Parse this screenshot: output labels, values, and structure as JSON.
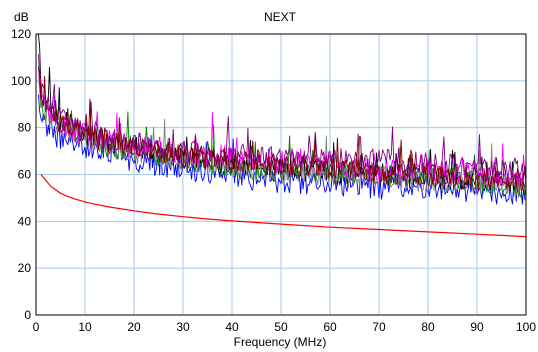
{
  "chart_data": {
    "type": "line",
    "title": "NEXT",
    "xlabel": "Frequency (MHz)",
    "ylabel": "dB",
    "xlim": [
      0,
      100
    ],
    "ylim": [
      0,
      120
    ],
    "xticks": [
      0,
      10,
      20,
      30,
      40,
      50,
      60,
      70,
      80,
      90,
      100
    ],
    "yticks": [
      0,
      20,
      40,
      60,
      80,
      100,
      120
    ],
    "grid": true,
    "legend": "none",
    "series": [
      {
        "color": "#ff0000",
        "x": [
          1,
          2,
          3,
          4,
          5,
          6,
          8,
          10,
          12,
          15,
          20,
          25,
          30,
          35,
          40,
          50,
          60,
          70,
          80,
          90,
          100
        ],
        "y": [
          60,
          57.5,
          55,
          53.5,
          52,
          51,
          49.5,
          48.3,
          47.3,
          46.1,
          44.5,
          43.1,
          42.0,
          41.0,
          40.2,
          38.8,
          37.5,
          36.5,
          35.5,
          34.5,
          33.5
        ]
      },
      {
        "color": "#0000ff",
        "x": [
          0.5,
          1,
          2,
          4,
          6,
          8,
          10,
          15,
          20,
          25,
          30,
          35,
          40,
          45,
          50,
          55,
          60,
          65,
          70,
          75,
          80,
          85,
          90,
          95,
          100
        ],
        "y": [
          92,
          85,
          80,
          76,
          74,
          73,
          72,
          69,
          66,
          63,
          62,
          60,
          59,
          58,
          57,
          56,
          56,
          55,
          54,
          55,
          54,
          53,
          53,
          52,
          52
        ]
      },
      {
        "color": "#008000",
        "x": [
          0.5,
          1,
          2,
          4,
          6,
          8,
          10,
          15,
          20,
          25,
          30,
          35,
          40,
          45,
          50,
          55,
          60,
          65,
          70,
          75,
          80,
          85,
          90,
          95,
          100
        ],
        "y": [
          102,
          90,
          86,
          82,
          80,
          78,
          76,
          72,
          70,
          68,
          67,
          65,
          64,
          63,
          62,
          62,
          61,
          60,
          60,
          59,
          58,
          58,
          57,
          56,
          55
        ]
      },
      {
        "color": "#000000",
        "x": [
          0.5,
          1,
          2,
          4,
          6,
          8,
          10,
          15,
          20,
          25,
          30,
          35,
          40,
          45,
          50,
          55,
          60,
          65,
          70,
          75,
          80,
          85,
          90,
          95,
          100
        ],
        "y": [
          125,
          98,
          90,
          85,
          82,
          80,
          78,
          74,
          72,
          70,
          68,
          66,
          65,
          64,
          63,
          62,
          61,
          60,
          60,
          59,
          59,
          58,
          58,
          57,
          56
        ]
      },
      {
        "color": "#808080",
        "x": [
          0.5,
          1,
          2,
          4,
          6,
          8,
          10,
          15,
          20,
          25,
          30,
          35,
          40,
          45,
          50,
          55,
          60,
          65,
          70,
          75,
          80,
          85,
          90,
          95,
          100
        ],
        "y": [
          100,
          92,
          86,
          81,
          79,
          77,
          75,
          72,
          70,
          68,
          66,
          65,
          63,
          62,
          61,
          61,
          60,
          59,
          59,
          58,
          57,
          57,
          56,
          56,
          55
        ]
      },
      {
        "color": "#ff00ff",
        "x": [
          0.5,
          1,
          2,
          4,
          6,
          8,
          10,
          15,
          20,
          25,
          30,
          35,
          40,
          45,
          50,
          55,
          60,
          65,
          70,
          75,
          80,
          85,
          90,
          95,
          100
        ],
        "y": [
          105,
          95,
          88,
          83,
          80,
          79,
          77,
          74,
          72,
          71,
          69,
          68,
          67,
          66,
          65,
          64,
          64,
          63,
          62,
          62,
          61,
          60,
          60,
          59,
          58
        ]
      },
      {
        "color": "#800080",
        "x": [
          0.5,
          1,
          2,
          4,
          6,
          8,
          10,
          15,
          20,
          25,
          30,
          35,
          40,
          45,
          50,
          55,
          60,
          65,
          70,
          75,
          80,
          85,
          90,
          95,
          100
        ],
        "y": [
          108,
          96,
          90,
          85,
          82,
          80,
          78,
          75,
          73,
          71,
          70,
          69,
          68,
          68,
          67,
          67,
          67,
          66,
          66,
          65,
          65,
          64,
          64,
          63,
          62
        ]
      },
      {
        "color": "#800000",
        "x": [
          0.5,
          1,
          2,
          4,
          6,
          8,
          10,
          15,
          20,
          25,
          30,
          35,
          40,
          45,
          50,
          55,
          60,
          65,
          70,
          75,
          80,
          85,
          90,
          95,
          100
        ],
        "y": [
          110,
          96,
          89,
          84,
          81,
          79,
          77,
          74,
          72,
          70,
          68,
          67,
          66,
          65,
          64,
          63,
          62,
          62,
          61,
          60,
          60,
          59,
          58,
          58,
          57
        ]
      }
    ]
  }
}
